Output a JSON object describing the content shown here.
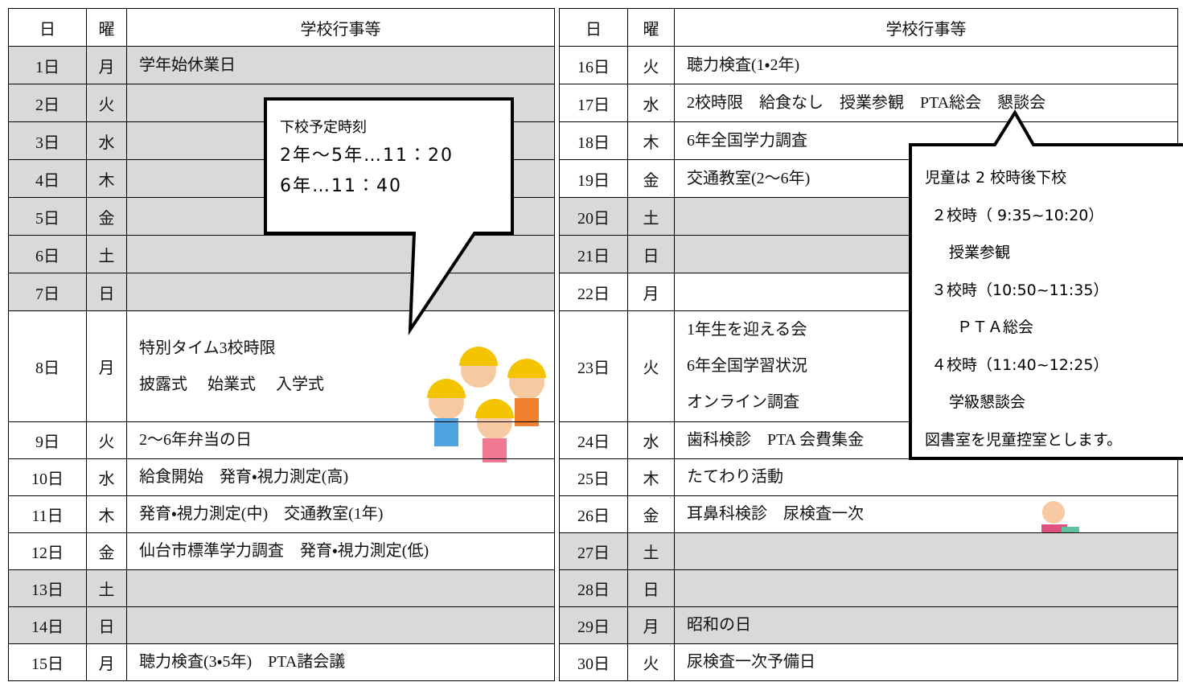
{
  "table": {
    "header": [
      "日",
      "曜",
      "学校行事等"
    ],
    "left": [
      {
        "day": "1日",
        "weekday": "月",
        "events": [
          "学年始休業日"
        ]
      },
      {
        "day": "2日",
        "weekday": "火",
        "events": []
      },
      {
        "day": "3日",
        "weekday": "水",
        "events": []
      },
      {
        "day": "4日",
        "weekday": "木",
        "events": []
      },
      {
        "day": "5日",
        "weekday": "金",
        "events": []
      },
      {
        "day": "6日",
        "weekday": "土",
        "events": []
      },
      {
        "day": "7日",
        "weekday": "日",
        "events": []
      },
      {
        "day": "8日",
        "weekday": "月",
        "events": [
          "特別タイム3校時限",
          "披露式　 始業式　 入学式"
        ]
      },
      {
        "day": "9日",
        "weekday": "火",
        "events": [
          "2～6年弁当の日"
        ]
      },
      {
        "day": "10日",
        "weekday": "水",
        "events": [
          "給食開始　発育・視力測定(高)"
        ]
      },
      {
        "day": "11日",
        "weekday": "木",
        "events": [
          "発育・視力測定(中)　交通教室(1年)"
        ]
      },
      {
        "day": "12日",
        "weekday": "金",
        "events": [
          "仙台市標準学力調査　発育・視力測定(低)"
        ]
      },
      {
        "day": "13日",
        "weekday": "土",
        "events": []
      },
      {
        "day": "14日",
        "weekday": "日",
        "events": []
      },
      {
        "day": "15日",
        "weekday": "月",
        "events": [
          "聴力検査(3・5年)　PTA諸会議"
        ]
      }
    ],
    "right": [
      {
        "day": "16日",
        "weekday": "火",
        "events": [
          "聴力検査(1・2年)"
        ]
      },
      {
        "day": "17日",
        "weekday": "水",
        "events": [
          "2校時限　給食なし　授業参観　PTA総会　懇談会"
        ]
      },
      {
        "day": "18日",
        "weekday": "木",
        "events": [
          "6年全国学力調査"
        ]
      },
      {
        "day": "19日",
        "weekday": "金",
        "events": [
          "交通教室(2～6年)"
        ]
      },
      {
        "day": "20日",
        "weekday": "土",
        "events": []
      },
      {
        "day": "21日",
        "weekday": "日",
        "events": []
      },
      {
        "day": "22日",
        "weekday": "月",
        "events": []
      },
      {
        "day": "23日",
        "weekday": "火",
        "events": [
          "1年生を迎える会",
          "6年全国学習状況",
          "オンライン調査"
        ]
      },
      {
        "day": "24日",
        "weekday": "水",
        "events": [
          "歯科検診　PTA 会費集金"
        ]
      },
      {
        "day": "25日",
        "weekday": "木",
        "events": [
          "たてわり活動"
        ]
      },
      {
        "day": "26日",
        "weekday": "金",
        "events": [
          "耳鼻科検診　尿検査一次"
        ]
      },
      {
        "day": "27日",
        "weekday": "土",
        "events": []
      },
      {
        "day": "28日",
        "weekday": "日",
        "events": []
      },
      {
        "day": "29日",
        "weekday": "月",
        "events": [
          "昭和の日"
        ]
      },
      {
        "day": "30日",
        "weekday": "火",
        "events": [
          "尿検査一次予備日"
        ]
      }
    ]
  },
  "callouts": [
    {
      "lines": [
        "下校予定時刻",
        "2年～5年…11：20",
        "6年…11：40"
      ]
    },
    {
      "lines": [
        "児童は 2 校時後下校",
        "２校時（ 9:35~10:20）",
        "授業参観",
        "３校時（10:50~11:35）",
        "ＰＴＡ総会",
        "４校時（11:40~12:25）",
        "学級懇談会",
        "図書室を児童控室とします。"
      ]
    }
  ]
}
